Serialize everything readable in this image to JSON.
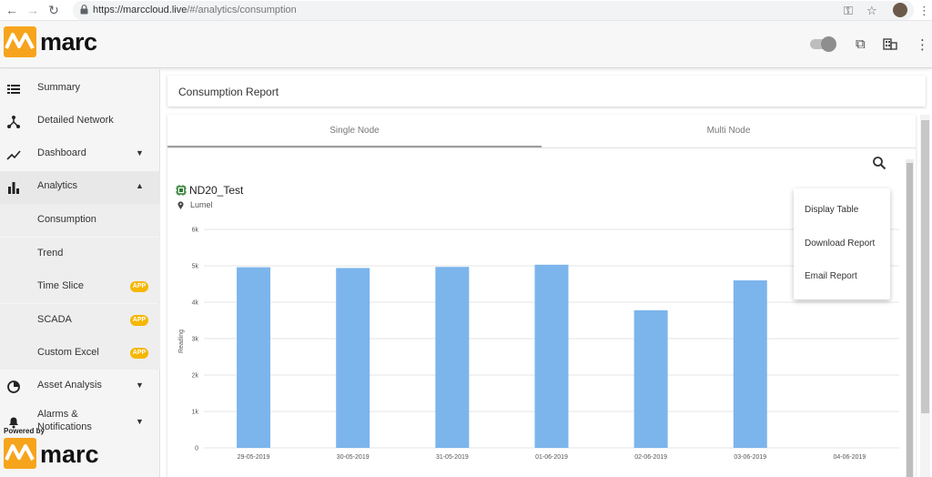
{
  "browser": {
    "url_host": "https://marccloud.live",
    "url_path": "/#/analytics/consumption"
  },
  "header": {
    "logo_text": "marc"
  },
  "sidebar": {
    "items": [
      {
        "label": "Summary",
        "icon": "list-icon"
      },
      {
        "label": "Detailed Network",
        "icon": "network-icon"
      },
      {
        "label": "Dashboard",
        "icon": "trending-icon"
      },
      {
        "label": "Analytics",
        "icon": "bar-chart-icon"
      }
    ],
    "sub_items": [
      {
        "label": "Consumption",
        "badge": ""
      },
      {
        "label": "Trend",
        "badge": ""
      },
      {
        "label": "Time Slice",
        "badge": "APP"
      },
      {
        "label": "SCADA",
        "badge": "APP"
      },
      {
        "label": "Custom Excel",
        "badge": "APP"
      }
    ],
    "lower_items": [
      {
        "label": "Asset Analysis",
        "icon": "pie-icon"
      },
      {
        "label": "Alarms &",
        "label2": "Notifications",
        "icon": "bell-icon"
      }
    ],
    "powered_by": "Powered by",
    "footer_logo_text": "marc"
  },
  "main": {
    "title": "Consumption Report",
    "tabs": [
      "Single Node",
      "Multi Node"
    ],
    "node_name": "ND20_Test",
    "node_location": "Lumel"
  },
  "menu": {
    "items": [
      "Display Table",
      "Download Report",
      "Email Report"
    ]
  },
  "colors": {
    "bar": "#7cb5ec",
    "accent": "#f5b700"
  },
  "chart_data": {
    "type": "bar",
    "categories": [
      "29-05-2019",
      "30-05-2019",
      "31-05-2019",
      "01-06-2019",
      "02-06-2019",
      "03-06-2019",
      "04-06-2019"
    ],
    "values": [
      4960,
      4940,
      4970,
      5030,
      3780,
      4600,
      0
    ],
    "ylabel": "Reading",
    "ylim": [
      0,
      6000
    ],
    "yticks": [
      "0",
      "1k",
      "2k",
      "3k",
      "4k",
      "5k",
      "6k"
    ],
    "grid": true
  }
}
